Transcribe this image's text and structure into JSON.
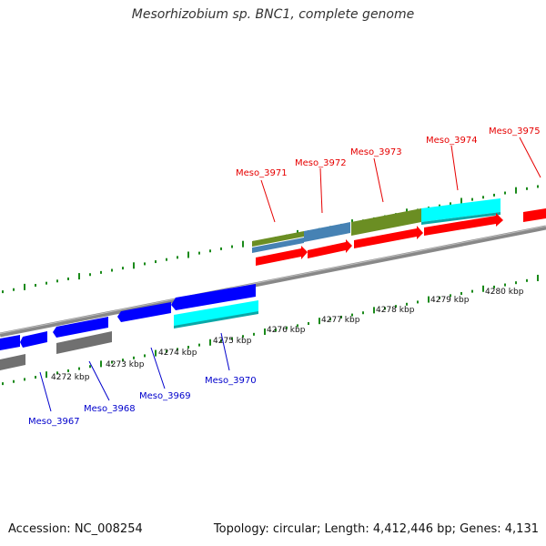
{
  "title": "Mesorhizobium sp. BNC1, complete genome",
  "footer": {
    "accession": "Accession: NC_008254",
    "topology": "Topology: circular; Length: 4,412,446 bp; Genes: 4,131"
  },
  "colors": {
    "forward_label": "#e60000",
    "reverse_label": "#0000cc",
    "cds": "#ff0000",
    "reverse_cds": "#0000ff",
    "gene_green": "#6b8e23",
    "gene_steelblue": "#4682b4",
    "gene_cyan": "#00ffff",
    "gene_gray": "#707070",
    "tick": "#1a8a1a",
    "backbone": "#888888"
  },
  "scale_ticks": [
    "4272 kbp",
    "4273 kbp",
    "4274 kbp",
    "4275 kbp",
    "4276 kbp",
    "4277 kbp",
    "4278 kbp",
    "4279 kbp",
    "4280 kbp"
  ],
  "forward_gene_labels": [
    "Meso_3971",
    "Meso_3972",
    "Meso_3973",
    "Meso_3974",
    "Meso_3975"
  ],
  "reverse_gene_labels": [
    "Meso_3967",
    "Meso_3968",
    "Meso_3969",
    "Meso_3970"
  ]
}
